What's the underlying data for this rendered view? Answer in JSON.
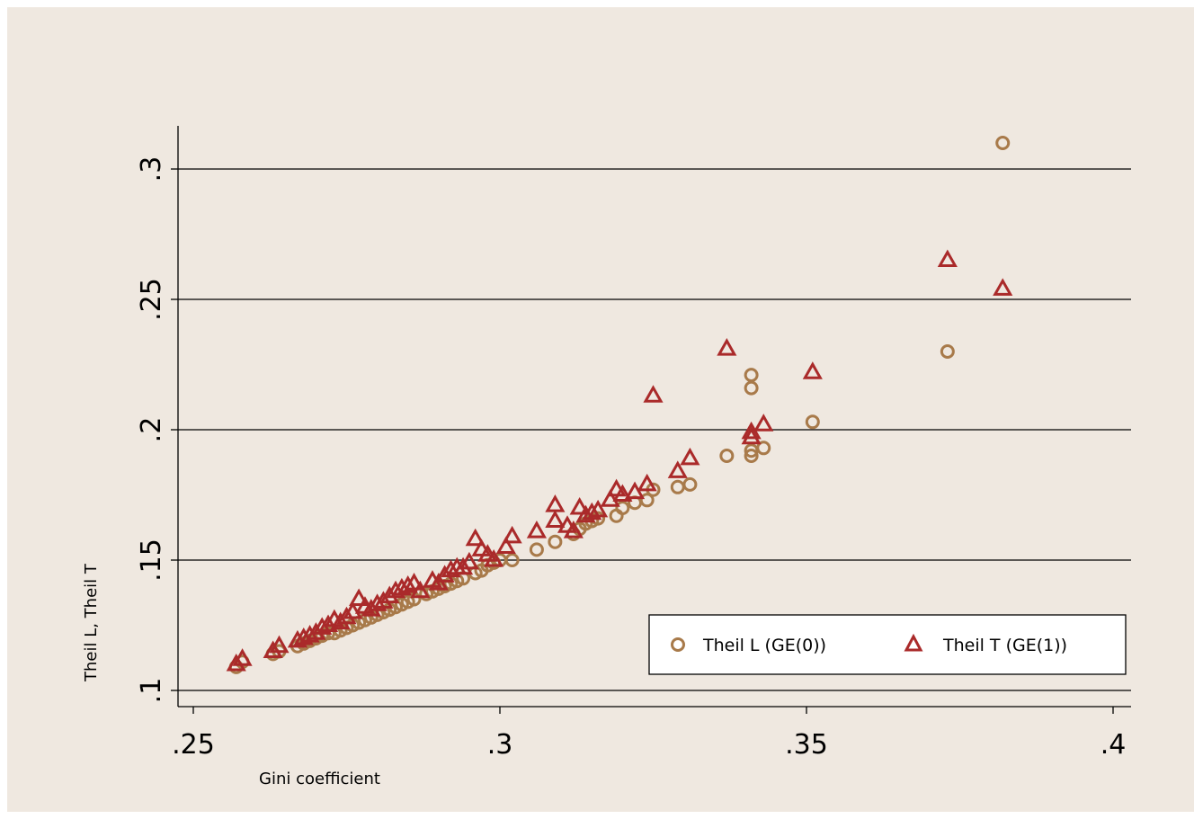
{
  "colors": {
    "background": "#efe8e0",
    "theil_l": "#a87a4a",
    "theil_t": "#aa2a2a",
    "gridline": "#000000"
  },
  "chart_data": {
    "type": "scatter",
    "title": "",
    "xlabel": "Gini coefficient",
    "ylabel": "Theil L, Theil T",
    "xlim": [
      0.25,
      0.4
    ],
    "ylim": [
      0.1,
      0.31
    ],
    "xticks": [
      {
        "value": 0.25,
        "label": ".25"
      },
      {
        "value": 0.3,
        "label": ".3"
      },
      {
        "value": 0.35,
        "label": ".35"
      },
      {
        "value": 0.4,
        "label": ".4"
      }
    ],
    "yticks": [
      {
        "value": 0.1,
        "label": ".1"
      },
      {
        "value": 0.15,
        "label": ".15"
      },
      {
        "value": 0.2,
        "label": ".2"
      },
      {
        "value": 0.25,
        "label": ".25"
      },
      {
        "value": 0.3,
        "label": ".3"
      }
    ],
    "grid": "horizontal",
    "legend_position": "bottom-right",
    "series": [
      {
        "name": "Theil L (GE(0))",
        "marker": "circle",
        "color": "#a87a4a",
        "points": [
          [
            0.257,
            0.109
          ],
          [
            0.258,
            0.111
          ],
          [
            0.263,
            0.114
          ],
          [
            0.264,
            0.115
          ],
          [
            0.267,
            0.117
          ],
          [
            0.268,
            0.118
          ],
          [
            0.269,
            0.119
          ],
          [
            0.27,
            0.12
          ],
          [
            0.271,
            0.121
          ],
          [
            0.272,
            0.122
          ],
          [
            0.273,
            0.122
          ],
          [
            0.274,
            0.123
          ],
          [
            0.275,
            0.124
          ],
          [
            0.276,
            0.125
          ],
          [
            0.277,
            0.126
          ],
          [
            0.278,
            0.127
          ],
          [
            0.279,
            0.128
          ],
          [
            0.28,
            0.129
          ],
          [
            0.281,
            0.13
          ],
          [
            0.282,
            0.131
          ],
          [
            0.283,
            0.132
          ],
          [
            0.284,
            0.133
          ],
          [
            0.285,
            0.134
          ],
          [
            0.286,
            0.135
          ],
          [
            0.288,
            0.137
          ],
          [
            0.289,
            0.138
          ],
          [
            0.29,
            0.139
          ],
          [
            0.291,
            0.14
          ],
          [
            0.292,
            0.141
          ],
          [
            0.293,
            0.142
          ],
          [
            0.294,
            0.143
          ],
          [
            0.296,
            0.145
          ],
          [
            0.297,
            0.146
          ],
          [
            0.298,
            0.148
          ],
          [
            0.299,
            0.149
          ],
          [
            0.3,
            0.15
          ],
          [
            0.302,
            0.15
          ],
          [
            0.306,
            0.154
          ],
          [
            0.309,
            0.157
          ],
          [
            0.312,
            0.16
          ],
          [
            0.313,
            0.162
          ],
          [
            0.314,
            0.164
          ],
          [
            0.315,
            0.165
          ],
          [
            0.316,
            0.166
          ],
          [
            0.319,
            0.167
          ],
          [
            0.32,
            0.17
          ],
          [
            0.322,
            0.172
          ],
          [
            0.324,
            0.173
          ],
          [
            0.325,
            0.177
          ],
          [
            0.329,
            0.178
          ],
          [
            0.331,
            0.179
          ],
          [
            0.337,
            0.19
          ],
          [
            0.341,
            0.19
          ],
          [
            0.341,
            0.192
          ],
          [
            0.343,
            0.193
          ],
          [
            0.341,
            0.216
          ],
          [
            0.341,
            0.221
          ],
          [
            0.351,
            0.203
          ],
          [
            0.373,
            0.23
          ],
          [
            0.382,
            0.31
          ]
        ]
      },
      {
        "name": "Theil T (GE(1))",
        "marker": "triangle",
        "color": "#aa2a2a",
        "points": [
          [
            0.257,
            0.11
          ],
          [
            0.258,
            0.112
          ],
          [
            0.263,
            0.115
          ],
          [
            0.264,
            0.117
          ],
          [
            0.267,
            0.119
          ],
          [
            0.268,
            0.12
          ],
          [
            0.269,
            0.121
          ],
          [
            0.27,
            0.122
          ],
          [
            0.271,
            0.124
          ],
          [
            0.272,
            0.125
          ],
          [
            0.273,
            0.127
          ],
          [
            0.274,
            0.126
          ],
          [
            0.275,
            0.128
          ],
          [
            0.276,
            0.13
          ],
          [
            0.277,
            0.135
          ],
          [
            0.278,
            0.132
          ],
          [
            0.279,
            0.131
          ],
          [
            0.28,
            0.133
          ],
          [
            0.281,
            0.134
          ],
          [
            0.282,
            0.136
          ],
          [
            0.283,
            0.138
          ],
          [
            0.284,
            0.139
          ],
          [
            0.285,
            0.14
          ],
          [
            0.286,
            0.141
          ],
          [
            0.287,
            0.138
          ],
          [
            0.289,
            0.142
          ],
          [
            0.29,
            0.141
          ],
          [
            0.291,
            0.144
          ],
          [
            0.292,
            0.146
          ],
          [
            0.293,
            0.147
          ],
          [
            0.294,
            0.147
          ],
          [
            0.295,
            0.149
          ],
          [
            0.296,
            0.158
          ],
          [
            0.297,
            0.154
          ],
          [
            0.298,
            0.152
          ],
          [
            0.299,
            0.15
          ],
          [
            0.301,
            0.155
          ],
          [
            0.302,
            0.159
          ],
          [
            0.306,
            0.161
          ],
          [
            0.309,
            0.171
          ],
          [
            0.309,
            0.165
          ],
          [
            0.311,
            0.163
          ],
          [
            0.312,
            0.161
          ],
          [
            0.313,
            0.17
          ],
          [
            0.314,
            0.167
          ],
          [
            0.315,
            0.168
          ],
          [
            0.316,
            0.169
          ],
          [
            0.318,
            0.173
          ],
          [
            0.319,
            0.177
          ],
          [
            0.32,
            0.175
          ],
          [
            0.322,
            0.176
          ],
          [
            0.324,
            0.179
          ],
          [
            0.325,
            0.213
          ],
          [
            0.329,
            0.184
          ],
          [
            0.331,
            0.189
          ],
          [
            0.337,
            0.231
          ],
          [
            0.341,
            0.199
          ],
          [
            0.341,
            0.197
          ],
          [
            0.343,
            0.202
          ],
          [
            0.351,
            0.222
          ],
          [
            0.373,
            0.265
          ],
          [
            0.382,
            0.254
          ]
        ]
      }
    ]
  }
}
